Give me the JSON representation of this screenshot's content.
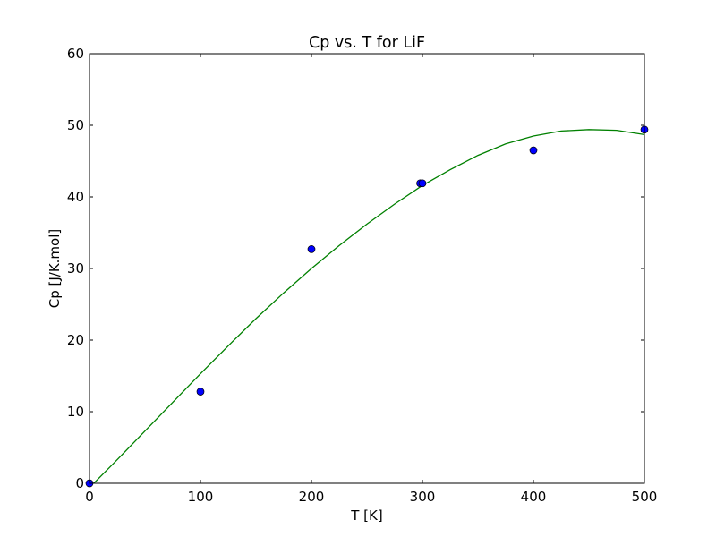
{
  "chart_data": {
    "type": "scatter",
    "title": "Cp vs. T for LiF",
    "xlabel": "T [K]",
    "ylabel": "Cp [J/K.mol]",
    "xlim": [
      0,
      500
    ],
    "ylim": [
      0,
      60
    ],
    "xticks": [
      0,
      100,
      200,
      300,
      400,
      500
    ],
    "yticks": [
      0,
      10,
      20,
      30,
      40,
      50,
      60
    ],
    "grid": false,
    "series": [
      {
        "kind": "markers",
        "color": "#0000ff",
        "x": [
          0,
          100,
          200,
          298,
          300,
          400,
          500
        ],
        "y": [
          0,
          12.8,
          32.7,
          41.9,
          41.9,
          46.5,
          49.4
        ]
      },
      {
        "kind": "line",
        "color": "#008000",
        "x": [
          0,
          25,
          50,
          75,
          100,
          125,
          150,
          175,
          200,
          225,
          250,
          275,
          300,
          325,
          350,
          375,
          400,
          425,
          450,
          475,
          500
        ],
        "y": [
          -0.6,
          3.3,
          7.3,
          11.3,
          15.3,
          19.2,
          23.0,
          26.6,
          30.0,
          33.2,
          36.2,
          39.0,
          41.6,
          43.8,
          45.8,
          47.4,
          48.5,
          49.2,
          49.4,
          49.3,
          48.7
        ]
      }
    ]
  }
}
